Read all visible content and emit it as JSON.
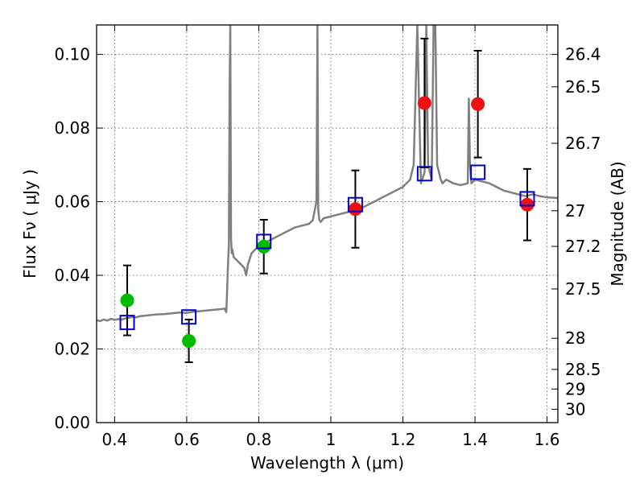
{
  "chart_data": {
    "type": "scatter",
    "xlabel": "Wavelength  λ (μm)",
    "ylabel": "Flux  Fν  ( μJy )",
    "y2label": "Magnitude (AB)",
    "xlim": [
      0.35,
      1.63
    ],
    "ylim": [
      0.0,
      0.108
    ],
    "grid": true,
    "xticks": [
      0.4,
      0.6,
      0.8,
      1.0,
      1.2,
      1.4,
      1.6
    ],
    "xtick_labels": [
      "0.4",
      "0.6",
      "0.8",
      "1",
      "1.2",
      "1.4",
      "1.6"
    ],
    "yticks": [
      0.0,
      0.02,
      0.04,
      0.06,
      0.08,
      0.1
    ],
    "ytick_labels": [
      "0.00",
      "0.02",
      "0.04",
      "0.06",
      "0.08",
      "0.10"
    ],
    "mag_ticks": [
      26.4,
      26.5,
      26.7,
      27,
      27.2,
      27.5,
      28,
      28.5,
      29,
      30
    ],
    "mag_tick_labels": [
      "26.4",
      "26.5",
      "26.7",
      "27",
      "27.2",
      "27.5",
      "28",
      "28.5",
      "29",
      "30"
    ],
    "series": [
      {
        "marker": "circle",
        "color": "#00bb00",
        "points": [
          {
            "x": 0.435,
            "y": 0.0332,
            "err": 0.0095
          },
          {
            "x": 0.606,
            "y": 0.0222,
            "err": 0.0058
          },
          {
            "x": 0.814,
            "y": 0.0478,
            "err": 0.0073
          }
        ]
      },
      {
        "marker": "circle",
        "color": "#ee1111",
        "points": [
          {
            "x": 1.068,
            "y": 0.058,
            "err": 0.0105
          },
          {
            "x": 1.26,
            "y": 0.0868,
            "err": 0.0175
          },
          {
            "x": 1.408,
            "y": 0.0865,
            "err": 0.0145
          },
          {
            "x": 1.545,
            "y": 0.0592,
            "err": 0.0097
          }
        ]
      },
      {
        "marker": "open-square",
        "color": "#0000cc",
        "points": [
          {
            "x": 0.435,
            "y": 0.0272
          },
          {
            "x": 0.606,
            "y": 0.0287
          },
          {
            "x": 0.814,
            "y": 0.0492
          },
          {
            "x": 1.068,
            "y": 0.0592
          },
          {
            "x": 1.26,
            "y": 0.0676
          },
          {
            "x": 1.408,
            "y": 0.068
          },
          {
            "x": 1.545,
            "y": 0.0608
          }
        ]
      },
      {
        "marker": "line",
        "color": "#808080",
        "x": [
          0.35,
          0.36,
          0.37,
          0.38,
          0.39,
          0.4,
          0.41,
          0.42,
          0.43,
          0.44,
          0.45,
          0.46,
          0.47,
          0.48,
          0.49,
          0.5,
          0.52,
          0.54,
          0.56,
          0.58,
          0.6,
          0.62,
          0.64,
          0.66,
          0.68,
          0.7,
          0.705,
          0.71,
          0.715,
          0.717,
          0.719,
          0.721,
          0.723,
          0.725,
          0.727,
          0.73,
          0.74,
          0.75,
          0.76,
          0.765,
          0.77,
          0.78,
          0.79,
          0.8,
          0.82,
          0.84,
          0.86,
          0.88,
          0.9,
          0.92,
          0.94,
          0.95,
          0.96,
          0.963,
          0.965,
          0.968,
          0.972,
          0.98,
          1.0,
          1.02,
          1.04,
          1.06,
          1.08,
          1.1,
          1.12,
          1.14,
          1.16,
          1.18,
          1.2,
          1.22,
          1.23,
          1.24,
          1.25,
          1.26,
          1.265,
          1.27,
          1.275,
          1.28,
          1.285,
          1.29,
          1.295,
          1.3,
          1.305,
          1.31,
          1.32,
          1.34,
          1.36,
          1.38,
          1.383,
          1.386,
          1.39,
          1.4,
          1.42,
          1.44,
          1.46,
          1.48,
          1.5,
          1.52,
          1.54,
          1.56,
          1.58,
          1.6,
          1.63
        ],
        "y": [
          0.0278,
          0.0276,
          0.028,
          0.0277,
          0.0282,
          0.0279,
          0.0281,
          0.028,
          0.0283,
          0.0285,
          0.0287,
          0.0286,
          0.0289,
          0.029,
          0.0291,
          0.0292,
          0.0294,
          0.0295,
          0.0297,
          0.0299,
          0.0298,
          0.0301,
          0.0303,
          0.0305,
          0.0307,
          0.0309,
          0.031,
          0.03,
          0.044,
          0.048,
          0.09,
          0.108,
          0.05,
          0.046,
          0.047,
          0.045,
          0.044,
          0.043,
          0.042,
          0.04,
          0.043,
          0.046,
          0.047,
          0.048,
          0.049,
          0.05,
          0.051,
          0.052,
          0.053,
          0.0535,
          0.054,
          0.055,
          0.06,
          0.108,
          0.058,
          0.055,
          0.0545,
          0.0555,
          0.056,
          0.0565,
          0.057,
          0.0575,
          0.058,
          0.059,
          0.06,
          0.061,
          0.062,
          0.063,
          0.064,
          0.066,
          0.07,
          0.108,
          0.065,
          0.068,
          0.108,
          0.07,
          0.068,
          0.066,
          0.108,
          0.108,
          0.07,
          0.068,
          0.066,
          0.065,
          0.066,
          0.065,
          0.0645,
          0.065,
          0.088,
          0.07,
          0.065,
          0.066,
          0.0655,
          0.065,
          0.064,
          0.063,
          0.0625,
          0.062,
          0.0615,
          0.062,
          0.0615,
          0.0612,
          0.061
        ]
      }
    ]
  }
}
